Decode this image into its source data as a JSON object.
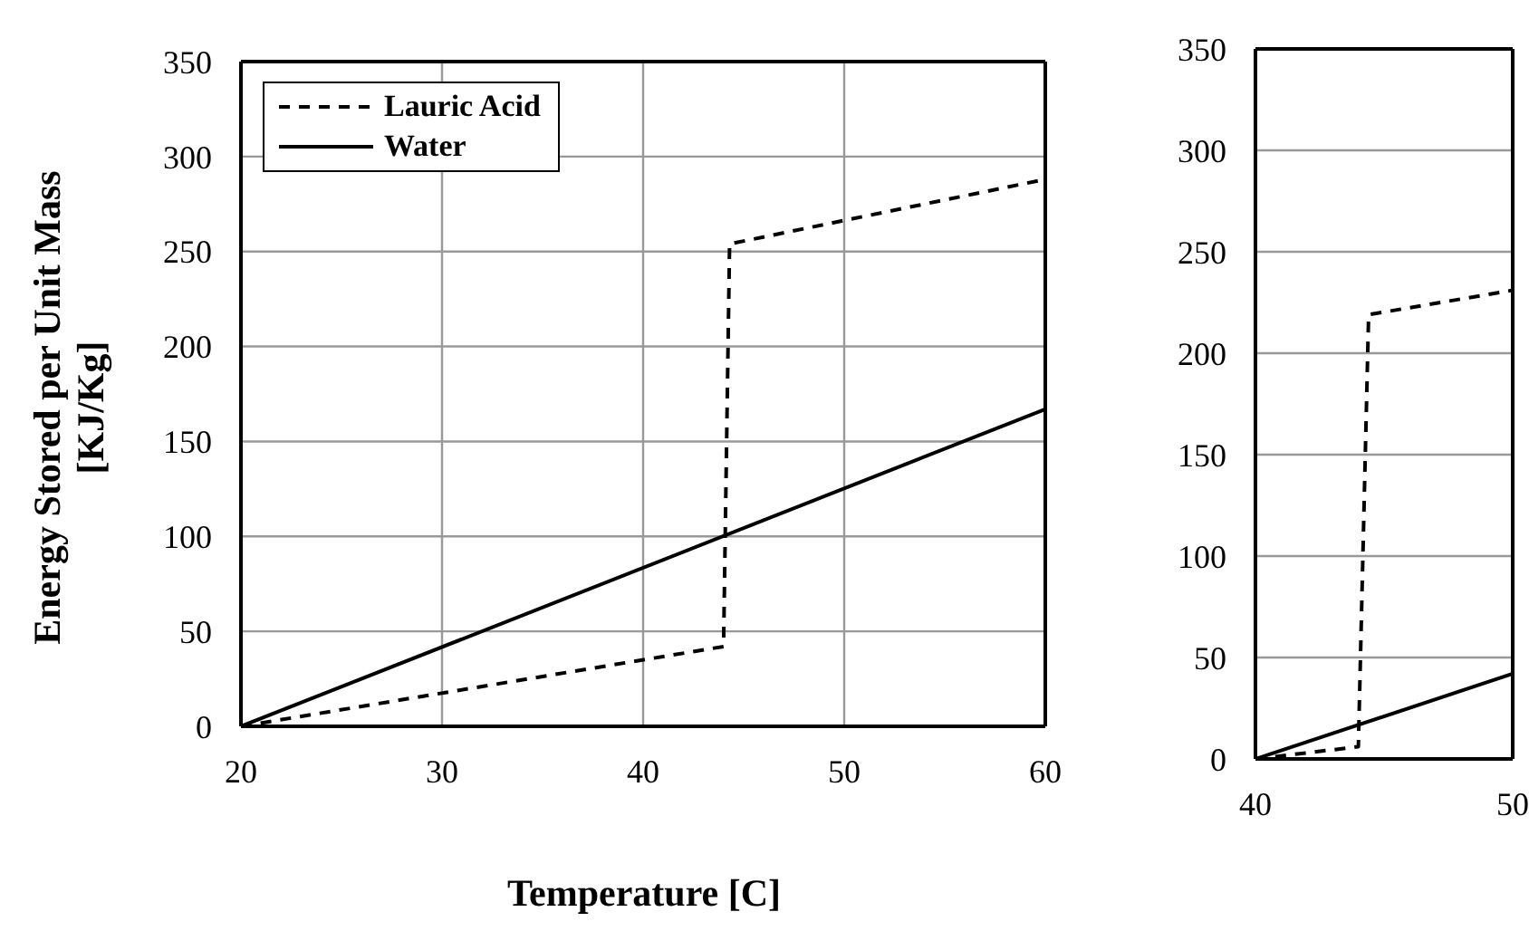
{
  "chart_data": [
    {
      "type": "line",
      "xlabel": "Temperature [C]",
      "ylabel": "Energy Stored per Unit Mass [KJ/Kg]",
      "xlim": [
        20,
        60
      ],
      "xticks": [
        20,
        30,
        40,
        50,
        60
      ],
      "ylim": [
        0,
        350
      ],
      "yticks": [
        0,
        50,
        100,
        150,
        200,
        250,
        300,
        350
      ],
      "grid": true,
      "legend": "top left",
      "marker": "none",
      "series": [
        {
          "name": "Lauric Acid",
          "color": "#000000",
          "line_style": "dashed",
          "x": [
            20,
            44,
            44.3,
            60
          ],
          "values": [
            0,
            42,
            254,
            288
          ]
        },
        {
          "name": "Water",
          "color": "#000000",
          "line_style": "solid",
          "x": [
            20,
            60
          ],
          "values": [
            0,
            167
          ]
        }
      ]
    },
    {
      "type": "line",
      "xlim": [
        40,
        50
      ],
      "xticks": [
        40,
        50
      ],
      "ylim": [
        0,
        350
      ],
      "yticks": [
        0,
        50,
        100,
        150,
        200,
        250,
        300,
        350
      ],
      "grid": "y",
      "marker": "none",
      "series": [
        {
          "color": "#000000",
          "line_style": "dashed",
          "x": [
            40,
            44,
            44.4,
            50
          ],
          "values": [
            0,
            6,
            219,
            231
          ]
        },
        {
          "color": "#000000",
          "line_style": "solid",
          "x": [
            40,
            50
          ],
          "values": [
            0,
            42
          ]
        }
      ]
    }
  ]
}
